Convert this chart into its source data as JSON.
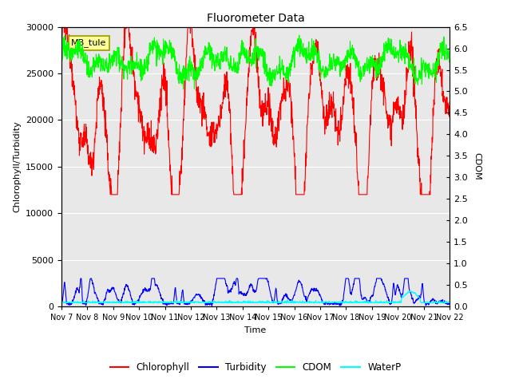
{
  "title": "Fluorometer Data",
  "xlabel": "Time",
  "ylabel_left": "Chlorophyll/Turbidity",
  "ylabel_right": "CDOM",
  "ylim_left": [
    0,
    30000
  ],
  "ylim_right": [
    0.0,
    6.5
  ],
  "yticks_left": [
    0,
    5000,
    10000,
    15000,
    20000,
    25000,
    30000
  ],
  "yticks_right": [
    0.0,
    0.5,
    1.0,
    1.5,
    2.0,
    2.5,
    3.0,
    3.5,
    4.0,
    4.5,
    5.0,
    5.5,
    6.0,
    6.5
  ],
  "xticklabels": [
    "Nov 7",
    "Nov 8",
    "Nov 9",
    "Nov 10",
    "Nov 11",
    "Nov 12",
    "Nov 13",
    "Nov 14",
    "Nov 15",
    "Nov 16",
    "Nov 17",
    "Nov 18",
    "Nov 19",
    "Nov 20",
    "Nov 21",
    "Nov 22"
  ],
  "legend_labels": [
    "Chlorophyll",
    "Turbidity",
    "CDOM",
    "WaterP"
  ],
  "legend_colors": [
    "red",
    "blue",
    "lime",
    "cyan"
  ],
  "annotation_text": "MB_tule",
  "bg_color": "#e8e8e8",
  "line_width": 0.8,
  "n_points": 1440
}
